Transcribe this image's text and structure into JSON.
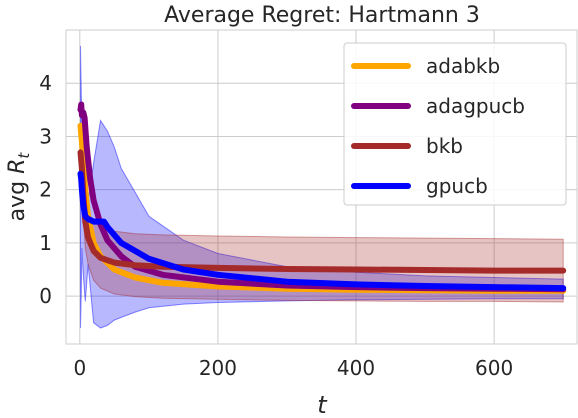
{
  "chart_data": {
    "type": "line",
    "title": "Average Regret: Hartmann 3",
    "xlabel": "t",
    "ylabel": "avg R_t",
    "ylabel_main": "avg ",
    "ylabel_var": "R",
    "ylabel_sub": "t",
    "xlim": [
      -20,
      720
    ],
    "ylim": [
      -0.9,
      5.0
    ],
    "xticks": [
      0,
      200,
      400,
      600
    ],
    "yticks": [
      0,
      1,
      2,
      3,
      4
    ],
    "grid": true,
    "legend_position": "top-right",
    "series": [
      {
        "name": "adabkb",
        "color": "#FFA500",
        "x": [
          1,
          3,
          5,
          8,
          12,
          20,
          30,
          50,
          80,
          120,
          200,
          300,
          400,
          500,
          600,
          700
        ],
        "y": [
          3.2,
          2.9,
          2.5,
          2.0,
          1.5,
          1.0,
          0.75,
          0.5,
          0.35,
          0.25,
          0.18,
          0.14,
          0.12,
          0.11,
          0.1,
          0.1
        ]
      },
      {
        "name": "adagpucb",
        "color": "#800080",
        "x": [
          1,
          2,
          3,
          5,
          7,
          10,
          15,
          20,
          30,
          40,
          60,
          80,
          120,
          200,
          300,
          400,
          500,
          600,
          700
        ],
        "y": [
          3.5,
          3.6,
          3.4,
          3.45,
          3.35,
          2.8,
          2.2,
          1.8,
          1.35,
          1.05,
          0.75,
          0.55,
          0.4,
          0.27,
          0.2,
          0.17,
          0.15,
          0.14,
          0.13
        ]
      },
      {
        "name": "bkb",
        "color": "#A52A2A",
        "x": [
          1,
          3,
          5,
          8,
          12,
          20,
          30,
          50,
          80,
          120,
          200,
          300,
          400,
          500,
          600,
          700
        ],
        "y": [
          2.7,
          2.4,
          1.9,
          1.4,
          1.1,
          0.85,
          0.72,
          0.63,
          0.58,
          0.55,
          0.53,
          0.51,
          0.5,
          0.49,
          0.48,
          0.48
        ]
      },
      {
        "name": "gpucb",
        "color": "#0000FF",
        "x": [
          1,
          2,
          3,
          5,
          8,
          12,
          20,
          30,
          35,
          40,
          50,
          60,
          80,
          100,
          150,
          200,
          300,
          400,
          500,
          600,
          700
        ],
        "y": [
          2.3,
          2.2,
          2.0,
          1.7,
          1.5,
          1.45,
          1.4,
          1.4,
          1.4,
          1.3,
          1.15,
          1.0,
          0.85,
          0.7,
          0.5,
          0.4,
          0.27,
          0.22,
          0.19,
          0.17,
          0.15
        ]
      }
    ],
    "bands": [
      {
        "series": "gpucb",
        "color": "#0000FF",
        "x": [
          1,
          2,
          3,
          5,
          8,
          12,
          20,
          30,
          40,
          50,
          60,
          80,
          100,
          150,
          200,
          300,
          400,
          500,
          600,
          700
        ],
        "upper": [
          4.7,
          3.9,
          3.0,
          2.8,
          2.0,
          1.8,
          2.5,
          3.3,
          3.1,
          2.8,
          2.4,
          1.95,
          1.5,
          1.05,
          0.8,
          0.55,
          0.45,
          0.38,
          0.35,
          0.32
        ],
        "lower": [
          -0.6,
          0.0,
          0.9,
          0.4,
          -0.1,
          0.6,
          -0.5,
          -0.6,
          -0.55,
          -0.45,
          -0.4,
          -0.3,
          -0.22,
          -0.15,
          -0.12,
          -0.09,
          -0.07,
          -0.06,
          -0.05,
          -0.05
        ]
      },
      {
        "series": "bkb",
        "color": "#A52A2A",
        "x": [
          1,
          3,
          5,
          8,
          12,
          20,
          30,
          50,
          80,
          120,
          200,
          300,
          400,
          500,
          600,
          700
        ],
        "upper": [
          2.9,
          2.7,
          2.3,
          1.9,
          1.6,
          1.4,
          1.3,
          1.22,
          1.17,
          1.15,
          1.13,
          1.11,
          1.1,
          1.09,
          1.08,
          1.07
        ],
        "lower": [
          2.5,
          2.1,
          1.5,
          0.9,
          0.6,
          0.3,
          0.15,
          0.04,
          -0.01,
          -0.04,
          -0.06,
          -0.08,
          -0.09,
          -0.1,
          -0.1,
          -0.11
        ]
      }
    ]
  }
}
